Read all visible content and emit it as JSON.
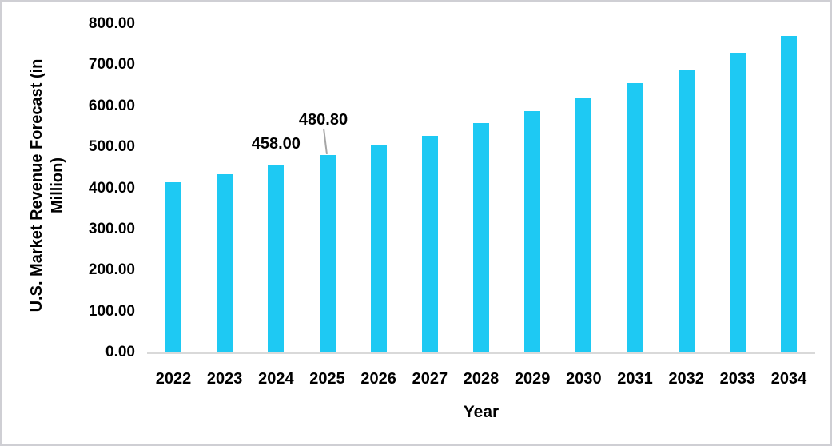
{
  "chart_data": {
    "type": "bar",
    "title": "",
    "xlabel": "Year",
    "ylabel": "U.S. Market Revenue Forecast (in Million)",
    "categories": [
      "2022",
      "2023",
      "2024",
      "2025",
      "2026",
      "2027",
      "2028",
      "2029",
      "2030",
      "2031",
      "2032",
      "2033",
      "2034"
    ],
    "values": [
      415,
      435,
      458,
      480.8,
      505,
      528,
      558,
      588,
      619,
      655,
      690,
      730,
      770
    ],
    "point_labels": {
      "2024": "458.00",
      "2025": "480.80"
    },
    "ylim": [
      0,
      800
    ],
    "ytick_step": 100,
    "ytick_labels": [
      "0.00",
      "100.00",
      "200.00",
      "300.00",
      "400.00",
      "500.00",
      "600.00",
      "700.00",
      "800.00"
    ],
    "grid": false,
    "legend_position": "none",
    "bar_color": "#1ec9f3",
    "axis_line_color": "#d9d9d9",
    "leader_line_color": "#a6a6a6",
    "text_color": "#000000"
  }
}
